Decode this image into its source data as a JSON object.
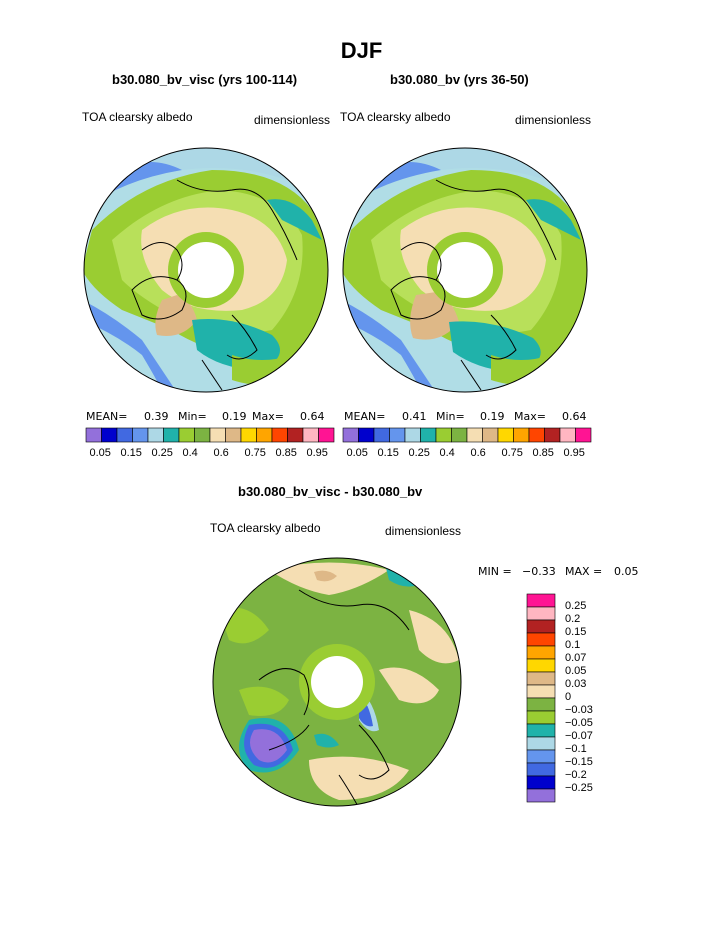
{
  "title": "DJF",
  "panels": [
    {
      "title": "b30.080_bv_visc (yrs 100-114)",
      "variable": "TOA clearsky albedo",
      "units": "dimensionless",
      "stats": {
        "mean_label": "MEAN=",
        "mean": "0.39",
        "min_label": "Min=",
        "min": "0.19",
        "max_label": "Max=",
        "max": "0.64"
      }
    },
    {
      "title": "b30.080_bv (yrs 36-50)",
      "variable": "TOA clearsky albedo",
      "units": "dimensionless",
      "stats": {
        "mean_label": "MEAN=",
        "mean": "0.41",
        "min_label": "Min=",
        "min": "0.19",
        "max_label": "Max=",
        "max": "0.64"
      }
    },
    {
      "title": "b30.080_bv_visc - b30.080_bv",
      "variable": "TOA clearsky albedo",
      "units": "dimensionless",
      "stats": {
        "min_label": "MIN =",
        "min": "−0.33",
        "max_label": "MAX =",
        "max": "0.05"
      }
    }
  ],
  "colorbar_top": {
    "colors": [
      "#9370db",
      "#0000cd",
      "#4169e1",
      "#6495ed",
      "#add8e6",
      "#20b2aa",
      "#9acd32",
      "#7cb342",
      "#f5deb3",
      "#deb887",
      "#ffd700",
      "#ffa500",
      "#ff4500",
      "#b22222",
      "#ffb6c1",
      "#ff1493"
    ],
    "labels": [
      "0.05",
      "0.15",
      "0.25",
      "0.4",
      "0.6",
      "0.75",
      "0.85",
      "0.95"
    ]
  },
  "colorbar_diff": {
    "colors": [
      "#ff1493",
      "#ffb6c1",
      "#b22222",
      "#ff4500",
      "#ffa500",
      "#ffd700",
      "#deb887",
      "#f5deb3",
      "#7cb342",
      "#9acd32",
      "#20b2aa",
      "#add8e6",
      "#6495ed",
      "#4169e1",
      "#0000cd",
      "#9370db"
    ],
    "labels": [
      "0.25",
      "0.2",
      "0.15",
      "0.1",
      "0.07",
      "0.05",
      "0.03",
      "0",
      "−0.03",
      "−0.05",
      "−0.07",
      "−0.1",
      "−0.15",
      "−0.2",
      "−0.25"
    ]
  },
  "map_colors": {
    "ocean_high": "#b0dde6",
    "ocean_mid": "#20b2aa",
    "ocean_low": "#6495ed",
    "land_green": "#9acd32",
    "land_light": "#b8e05a",
    "tan": "#f5deb3",
    "brown": "#deb887",
    "diff_green": "#7cb342",
    "diff_light": "#9acd32",
    "diff_tan": "#f5deb3",
    "diff_blue": "#4169e1",
    "diff_purple": "#9370db",
    "coast": "#000000"
  }
}
